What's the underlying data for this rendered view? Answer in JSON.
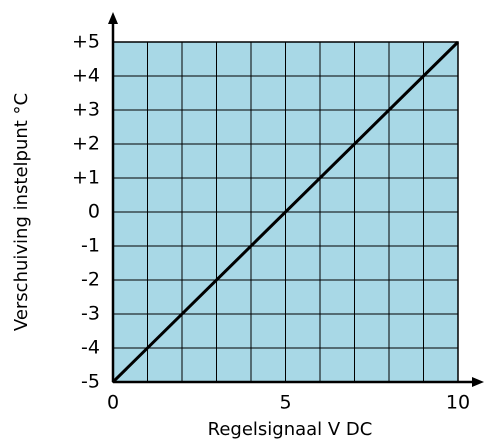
{
  "chart_data": {
    "type": "line",
    "xlabel": "Regelsignaal V DC",
    "ylabel": "Verschuiving instelpunt °C",
    "x": [
      0,
      10
    ],
    "series": [
      {
        "name": null,
        "color": "#000000",
        "values": [
          -5,
          5
        ]
      }
    ],
    "xlim": [
      0,
      10
    ],
    "xticks": [
      0,
      5,
      10
    ],
    "minor_xticks": [
      1,
      2,
      3,
      4,
      6,
      7,
      8,
      9
    ],
    "ylim": [
      -5,
      5
    ],
    "yticks": [
      {
        "value": -5,
        "label": "-5"
      },
      -4,
      -3,
      -2,
      -1,
      0,
      {
        "value": 1,
        "label": "+1"
      },
      {
        "value": 2,
        "label": "+2"
      },
      {
        "value": 3,
        "label": "+3"
      },
      {
        "value": 4,
        "label": "+4"
      },
      {
        "value": 5,
        "label": "+5"
      }
    ],
    "grid": true,
    "plot_color": "#a8d8e6"
  }
}
